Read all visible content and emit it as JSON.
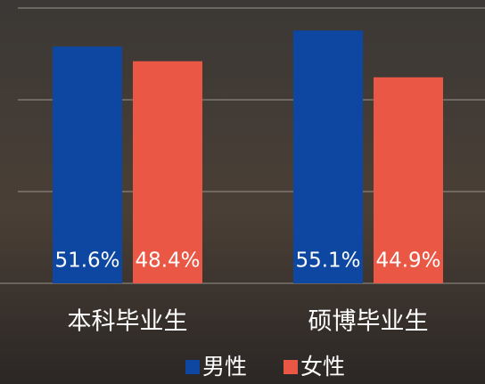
{
  "chart_data": {
    "type": "bar",
    "categories": [
      "本科毕业生",
      "硕博毕业生"
    ],
    "series": [
      {
        "name": "男性",
        "color": "#0d47a1",
        "values": [
          51.6,
          55.1
        ],
        "value_labels": [
          "51.6%",
          "55.1%"
        ]
      },
      {
        "name": "女性",
        "color": "#ea5744",
        "values": [
          48.4,
          44.9
        ],
        "value_labels": [
          "48.4%",
          "44.9%"
        ]
      }
    ],
    "ylim": [
      0,
      60
    ],
    "yticks": [
      0,
      20,
      40,
      60
    ],
    "grid": true
  }
}
